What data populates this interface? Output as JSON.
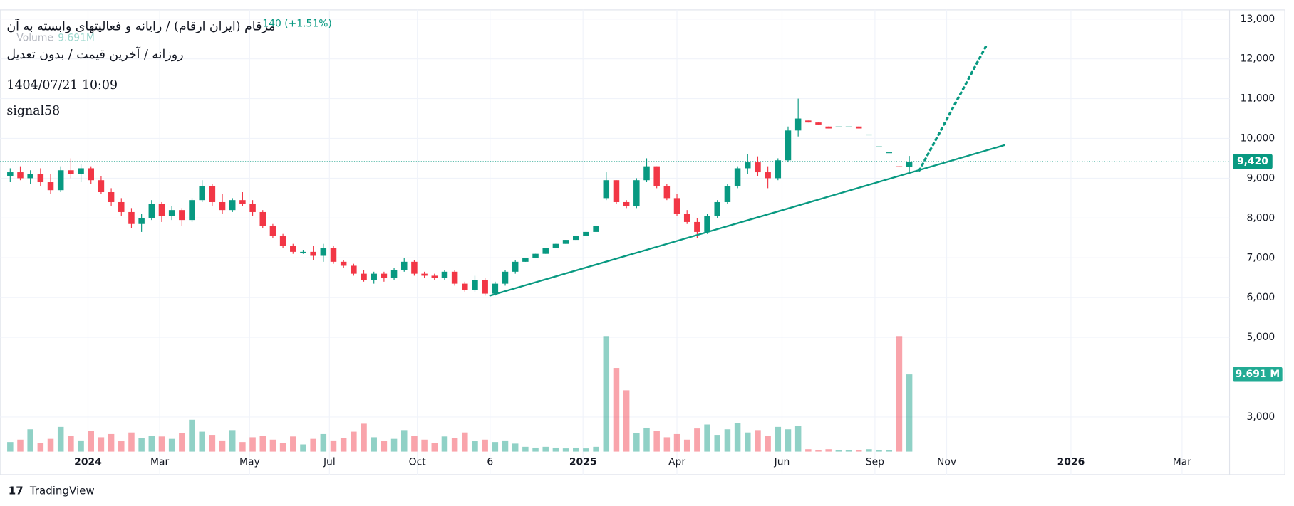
{
  "chart_data": {
    "type": "candlestick",
    "title": "مرقام (ایران ارقام) / رایانه و فعالیتهای وابسته به آن",
    "subtitle": "روزانه / آخرین قیمت / بدون تعدیل",
    "timestamp": "1404/07/21 10:09",
    "author": "signal58",
    "change_label": "140 (+1.51%)",
    "volume_name": "Volume",
    "volume_header_label": "9.691M",
    "footer": "TradingView",
    "up_color": "#089981",
    "down_color": "#f23645",
    "candles": [
      [
        9050,
        9250,
        8900,
        9150
      ],
      [
        9150,
        9300,
        8950,
        9000
      ],
      [
        9000,
        9200,
        8850,
        9100
      ],
      [
        9100,
        9250,
        8800,
        8900
      ],
      [
        8900,
        9100,
        8600,
        8700
      ],
      [
        8700,
        9300,
        8650,
        9200
      ],
      [
        9200,
        9500,
        9000,
        9100
      ],
      [
        9100,
        9350,
        8900,
        9250
      ],
      [
        9250,
        9300,
        8850,
        8950
      ],
      [
        8950,
        9050,
        8600,
        8650
      ],
      [
        8650,
        8750,
        8300,
        8400
      ],
      [
        8400,
        8500,
        8050,
        8150
      ],
      [
        8150,
        8250,
        7750,
        7850
      ],
      [
        7850,
        8100,
        7650,
        8000
      ],
      [
        8000,
        8450,
        7950,
        8350
      ],
      [
        8350,
        8400,
        7900,
        8050
      ],
      [
        8050,
        8300,
        7950,
        8200
      ],
      [
        8200,
        8250,
        7800,
        7950
      ],
      [
        7950,
        8500,
        7900,
        8450
      ],
      [
        8450,
        8950,
        8400,
        8800
      ],
      [
        8800,
        8850,
        8300,
        8400
      ],
      [
        8400,
        8600,
        8100,
        8200
      ],
      [
        8200,
        8500,
        8150,
        8450
      ],
      [
        8450,
        8650,
        8300,
        8350
      ],
      [
        8350,
        8450,
        8050,
        8150
      ],
      [
        8150,
        8200,
        7750,
        7800
      ],
      [
        7800,
        7850,
        7500,
        7550
      ],
      [
        7550,
        7600,
        7250,
        7300
      ],
      [
        7300,
        7350,
        7100,
        7150
      ],
      [
        7150,
        7200,
        7100,
        7150
      ],
      [
        7150,
        7300,
        6950,
        7050
      ],
      [
        7050,
        7350,
        6900,
        7250
      ],
      [
        7250,
        7300,
        6850,
        6900
      ],
      [
        6900,
        6950,
        6750,
        6800
      ],
      [
        6800,
        6850,
        6550,
        6600
      ],
      [
        6600,
        6700,
        6400,
        6450
      ],
      [
        6450,
        6650,
        6350,
        6600
      ],
      [
        6600,
        6650,
        6400,
        6500
      ],
      [
        6500,
        6750,
        6450,
        6700
      ],
      [
        6700,
        7000,
        6650,
        6900
      ],
      [
        6900,
        6950,
        6550,
        6600
      ],
      [
        6600,
        6650,
        6500,
        6550
      ],
      [
        6550,
        6600,
        6450,
        6500
      ],
      [
        6500,
        6700,
        6450,
        6650
      ],
      [
        6650,
        6700,
        6300,
        6350
      ],
      [
        6350,
        6400,
        6150,
        6200
      ],
      [
        6200,
        6550,
        6150,
        6450
      ],
      [
        6450,
        6500,
        6050,
        6100
      ],
      [
        6100,
        6400,
        6050,
        6350
      ],
      [
        6350,
        6700,
        6300,
        6650
      ],
      [
        6650,
        6950,
        6600,
        6900
      ],
      [
        6900,
        7000,
        6900,
        7000
      ],
      [
        7000,
        7100,
        7000,
        7100
      ],
      [
        7100,
        7250,
        7100,
        7250
      ],
      [
        7250,
        7350,
        7250,
        7350
      ],
      [
        7350,
        7450,
        7350,
        7450
      ],
      [
        7450,
        7550,
        7450,
        7550
      ],
      [
        7550,
        7650,
        7550,
        7650
      ],
      [
        7650,
        7800,
        7650,
        7800
      ],
      [
        8500,
        9150,
        8450,
        8950
      ],
      [
        8950,
        8950,
        8350,
        8400
      ],
      [
        8400,
        8450,
        8250,
        8300
      ],
      [
        8300,
        9000,
        8250,
        8950
      ],
      [
        8950,
        9500,
        8900,
        9300
      ],
      [
        9300,
        9300,
        8750,
        8800
      ],
      [
        8800,
        8850,
        8450,
        8500
      ],
      [
        8500,
        8600,
        8050,
        8100
      ],
      [
        8100,
        8200,
        7850,
        7900
      ],
      [
        7900,
        8000,
        7500,
        7650
      ],
      [
        7650,
        8100,
        7600,
        8050
      ],
      [
        8050,
        8450,
        8000,
        8400
      ],
      [
        8400,
        8850,
        8350,
        8800
      ],
      [
        8800,
        9300,
        8750,
        9250
      ],
      [
        9250,
        9600,
        9100,
        9400
      ],
      [
        9400,
        9550,
        9050,
        9150
      ],
      [
        9150,
        9300,
        8750,
        9000
      ],
      [
        9000,
        9500,
        8950,
        9450
      ],
      [
        9450,
        10300,
        9400,
        10200
      ],
      [
        10200,
        11000,
        10050,
        10500
      ],
      [
        10450,
        10450,
        10400,
        10400
      ],
      [
        10400,
        10400,
        10350,
        10350
      ],
      [
        10300,
        10300,
        10250,
        10250
      ],
      [
        10300,
        10300,
        10300,
        10300
      ],
      [
        10300,
        10300,
        10300,
        10300
      ],
      [
        10300,
        10300,
        10250,
        10250
      ],
      [
        10100,
        10100,
        10100,
        10100
      ],
      [
        9800,
        9800,
        9800,
        9800
      ],
      [
        9650,
        9650,
        9650,
        9650
      ],
      [
        9300,
        9300,
        9280,
        9280
      ],
      [
        9280,
        9560,
        9100,
        9420
      ]
    ],
    "volumes": [
      1.2,
      1.5,
      2.8,
      1.1,
      1.6,
      3.1,
      2.0,
      1.4,
      2.6,
      1.8,
      2.2,
      1.3,
      2.4,
      1.7,
      2.0,
      1.9,
      1.6,
      2.3,
      4.0,
      2.5,
      2.1,
      1.4,
      2.7,
      1.2,
      1.8,
      2.0,
      1.5,
      1.1,
      1.9,
      0.9,
      1.6,
      2.2,
      1.4,
      1.7,
      2.5,
      3.5,
      1.8,
      1.3,
      1.6,
      2.7,
      2.0,
      1.5,
      1.1,
      1.9,
      1.7,
      2.4,
      1.3,
      1.5,
      1.2,
      1.4,
      1.0,
      0.6,
      0.5,
      0.6,
      0.5,
      0.4,
      0.5,
      0.4,
      0.6,
      14.5,
      10.5,
      7.7,
      2.3,
      3.0,
      2.6,
      1.8,
      2.2,
      1.5,
      2.9,
      3.4,
      2.1,
      2.8,
      3.6,
      2.4,
      2.7,
      2.0,
      3.1,
      2.8,
      3.2,
      0.3,
      0.2,
      0.3,
      0.2,
      0.2,
      0.2,
      0.3,
      0.2,
      0.2,
      14.5,
      9.691
    ],
    "xlim": [
      -1,
      120.7
    ],
    "ylim": [
      2130,
      13230
    ],
    "y2lim": [
      0,
      15
    ],
    "xticks": [
      {
        "value": 7.7,
        "label": "2024"
      },
      {
        "value": 14.8,
        "label": "Mar"
      },
      {
        "value": 23.7,
        "label": "May"
      },
      {
        "value": 31.6,
        "label": "Jul"
      },
      {
        "value": 40.3,
        "label": "Oct"
      },
      {
        "value": 47.5,
        "label": "6"
      },
      {
        "value": 56.7,
        "label": "2025"
      },
      {
        "value": 66,
        "label": "Apr"
      },
      {
        "value": 76.4,
        "label": "Jun"
      },
      {
        "value": 85.6,
        "label": "Sep"
      },
      {
        "value": 92.7,
        "label": "Nov"
      },
      {
        "value": 105,
        "label": "2026"
      },
      {
        "value": 116,
        "label": "Mar"
      }
    ],
    "yticks": [
      {
        "value": 3000,
        "label": "3,000"
      },
      {
        "value": 5000,
        "label": "5,000"
      },
      {
        "value": 6000,
        "label": "6,000"
      },
      {
        "value": 7000,
        "label": "7,000"
      },
      {
        "value": 8000,
        "label": "8,000"
      },
      {
        "value": 9000,
        "label": "9,000"
      },
      {
        "value": 10000,
        "label": "10,000"
      },
      {
        "value": 11000,
        "label": "11,000"
      },
      {
        "value": 12000,
        "label": "12,000"
      },
      {
        "value": 13000,
        "label": "13,000"
      }
    ],
    "last_price": {
      "value": 9420,
      "label": "9,420"
    },
    "last_volume": {
      "value": 9.691,
      "label": "9.691 M"
    },
    "grid": true,
    "trendlines": [
      {
        "points": [
          [
            47.5,
            6050
          ],
          [
            98.4,
            9830
          ]
        ],
        "style": "solid",
        "color": "#089981"
      },
      {
        "points": [
          [
            90,
            9200
          ],
          [
            96.6,
            12320
          ]
        ],
        "style": "dotted",
        "color": "#089981"
      }
    ]
  }
}
